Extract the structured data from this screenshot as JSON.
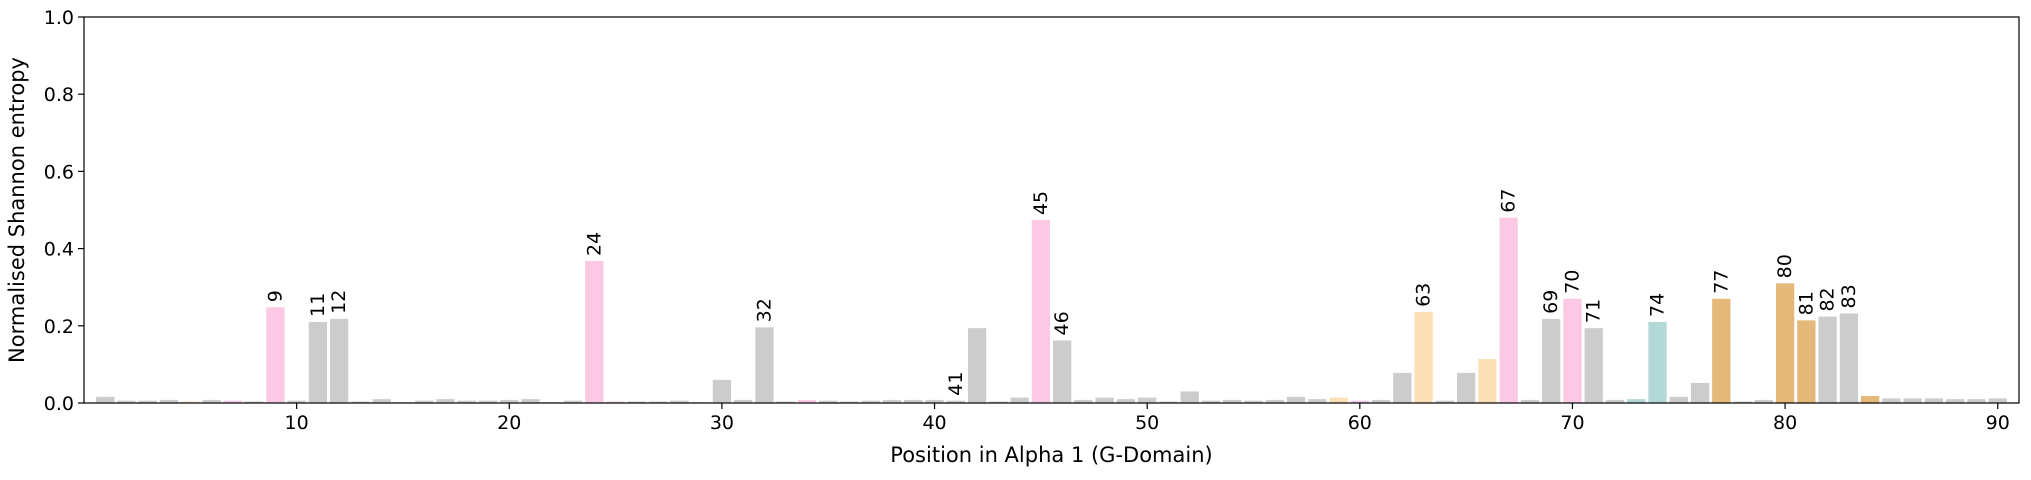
{
  "chart_data": {
    "type": "bar",
    "title": "",
    "xlabel": "Position in Alpha 1 (G-Domain)",
    "ylabel": "Normalised Shannon entropy",
    "xlim": [
      0,
      91
    ],
    "ylim": [
      0,
      1.0
    ],
    "x_ticks": [
      10,
      20,
      30,
      40,
      50,
      60,
      70,
      80,
      90
    ],
    "y_ticks": [
      0.0,
      0.2,
      0.4,
      0.6,
      0.8,
      1.0
    ],
    "grid": false,
    "legend": "none",
    "colors": {
      "gray": "#cccccc",
      "pink": "#fbc9e3",
      "peach": "#fde0b8",
      "teal": "#b2d8d8",
      "gold": "#e3b878"
    },
    "positions": [
      1,
      2,
      3,
      4,
      5,
      6,
      7,
      8,
      9,
      10,
      11,
      12,
      13,
      14,
      15,
      16,
      17,
      18,
      19,
      20,
      21,
      22,
      23,
      24,
      25,
      26,
      27,
      28,
      29,
      30,
      31,
      32,
      33,
      34,
      35,
      36,
      37,
      38,
      39,
      40,
      41,
      42,
      43,
      44,
      45,
      46,
      47,
      48,
      49,
      50,
      51,
      52,
      53,
      54,
      55,
      56,
      57,
      58,
      59,
      60,
      61,
      62,
      63,
      64,
      65,
      66,
      67,
      68,
      69,
      70,
      71,
      72,
      73,
      74,
      75,
      76,
      77,
      78,
      79,
      80,
      81,
      82,
      83,
      84,
      85,
      86,
      87,
      88,
      89,
      90
    ],
    "values": [
      0.016,
      0.006,
      0.006,
      0.008,
      0.004,
      0.008,
      0.006,
      0.004,
      0.248,
      0.006,
      0.21,
      0.218,
      0.004,
      0.01,
      0.002,
      0.006,
      0.01,
      0.006,
      0.006,
      0.008,
      0.01,
      0.002,
      0.006,
      0.368,
      0.004,
      0.004,
      0.004,
      0.006,
      0.002,
      0.06,
      0.008,
      0.196,
      0.004,
      0.008,
      0.006,
      0.004,
      0.006,
      0.008,
      0.008,
      0.008,
      0.006,
      0.194,
      0.004,
      0.014,
      0.474,
      0.162,
      0.008,
      0.014,
      0.01,
      0.014,
      0.004,
      0.03,
      0.006,
      0.008,
      0.006,
      0.008,
      0.016,
      0.01,
      0.014,
      0.006,
      0.008,
      0.078,
      0.236,
      0.006,
      0.078,
      0.114,
      0.48,
      0.008,
      0.218,
      0.27,
      0.194,
      0.008,
      0.01,
      0.21,
      0.016,
      0.052,
      0.27,
      0.004,
      0.008,
      0.31,
      0.214,
      0.224,
      0.232,
      0.018,
      0.012,
      0.012,
      0.012,
      0.01,
      0.01,
      0.012
    ],
    "bar_colors": [
      "gray",
      "gray",
      "gray",
      "gray",
      "peach",
      "gray",
      "pink",
      "gray",
      "pink",
      "gray",
      "gray",
      "gray",
      "gray",
      "gray",
      "gray",
      "gray",
      "gray",
      "gray",
      "gray",
      "gray",
      "gray",
      "gray",
      "gray",
      "pink",
      "pink",
      "gray",
      "gray",
      "gray",
      "gray",
      "gray",
      "gray",
      "gray",
      "gray",
      "pink",
      "gray",
      "gray",
      "gray",
      "gray",
      "gray",
      "gray",
      "gray",
      "gray",
      "gray",
      "gray",
      "pink",
      "gray",
      "gray",
      "gray",
      "gray",
      "gray",
      "gray",
      "gray",
      "gray",
      "gray",
      "gray",
      "gray",
      "gray",
      "gray",
      "peach",
      "pink",
      "gray",
      "gray",
      "peach",
      "gray",
      "gray",
      "peach",
      "pink",
      "gray",
      "gray",
      "pink",
      "gray",
      "gray",
      "teal",
      "teal",
      "gray",
      "gray",
      "gold",
      "gray",
      "gray",
      "gold",
      "gold",
      "gray",
      "gray",
      "gold",
      "gray",
      "gray",
      "gray",
      "gray",
      "gray",
      "gray"
    ],
    "annotated_positions": [
      9,
      11,
      12,
      24,
      32,
      41,
      45,
      46,
      63,
      67,
      69,
      70,
      71,
      74,
      77,
      80,
      81,
      82,
      83
    ]
  }
}
